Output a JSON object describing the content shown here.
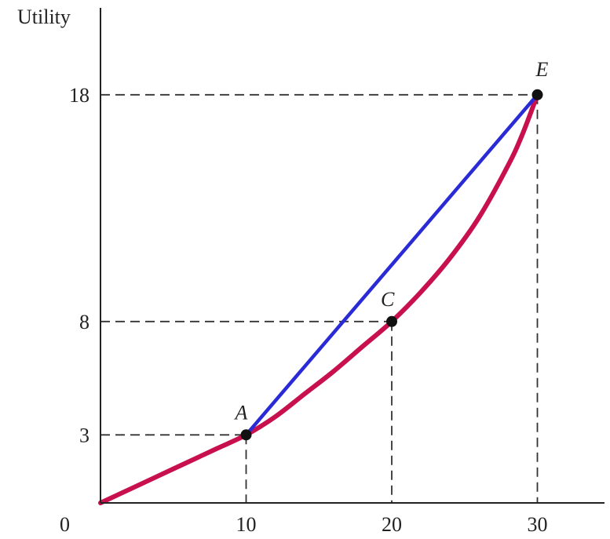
{
  "chart_data": {
    "type": "line",
    "ylabel": "Utility",
    "xlabel": "",
    "origin_label": "0",
    "xlim": [
      0,
      34
    ],
    "ylim": [
      0,
      21
    ],
    "x_ticks": [
      10,
      20,
      30
    ],
    "y_ticks": [
      3,
      8,
      18
    ],
    "grid": false,
    "series": [
      {
        "kind": "utility-curve",
        "color": "#c8104e",
        "x": [
          0,
          2,
          4,
          6,
          8,
          10,
          12,
          14,
          16,
          18,
          20,
          22,
          24,
          26,
          28,
          29,
          30
        ],
        "y": [
          0,
          0.6,
          1.2,
          1.8,
          2.4,
          3,
          3.8,
          4.8,
          5.8,
          6.9,
          8,
          9.3,
          10.8,
          12.6,
          14.9,
          16.3,
          18
        ]
      },
      {
        "kind": "chord",
        "color": "#2a2ad6",
        "x": [
          10,
          30
        ],
        "y": [
          3,
          18
        ]
      }
    ],
    "points": [
      {
        "label": "A",
        "x": 10,
        "y": 3
      },
      {
        "label": "C",
        "x": 20,
        "y": 8
      },
      {
        "label": "E",
        "x": 30,
        "y": 18
      }
    ]
  }
}
